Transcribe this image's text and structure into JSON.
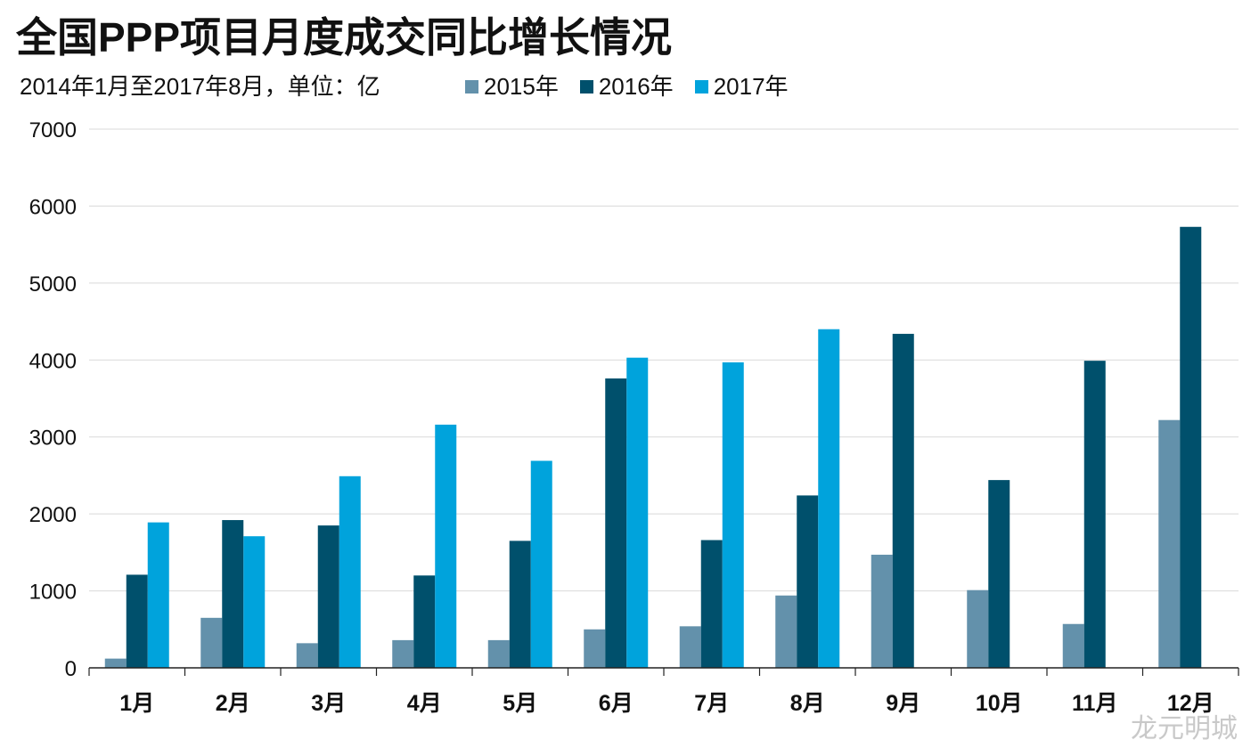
{
  "title": "全国PPP项目月度成交同比增长情况",
  "subtitle": "2014年1月至2017年8月，单位：亿",
  "watermark_text": "龙元明城",
  "chart_data": {
    "type": "bar",
    "title": "全国PPP项目月度成交同比增长情况",
    "subtitle": "2014年1月至2017年8月，单位：亿",
    "xlabel": "",
    "ylabel": "",
    "categories": [
      "1月",
      "2月",
      "3月",
      "4月",
      "5月",
      "6月",
      "7月",
      "8月",
      "9月",
      "10月",
      "11月",
      "12月"
    ],
    "series": [
      {
        "name": "2015年",
        "color": "#6391ab",
        "values": [
          120,
          650,
          320,
          360,
          360,
          500,
          540,
          940,
          1470,
          1010,
          570,
          3220
        ]
      },
      {
        "name": "2016年",
        "color": "#00506c",
        "values": [
          1210,
          1920,
          1850,
          1200,
          1650,
          3760,
          1660,
          2240,
          4340,
          2440,
          3990,
          5730
        ]
      },
      {
        "name": "2017年",
        "color": "#00a3dc",
        "values": [
          1890,
          1710,
          2490,
          3160,
          2690,
          4030,
          3970,
          4400,
          null,
          null,
          null,
          null
        ]
      }
    ],
    "ylim": [
      0,
      7000
    ],
    "yticks": [
      0,
      1000,
      2000,
      3000,
      4000,
      5000,
      6000,
      7000
    ],
    "grid": true,
    "legend_position": "top"
  }
}
